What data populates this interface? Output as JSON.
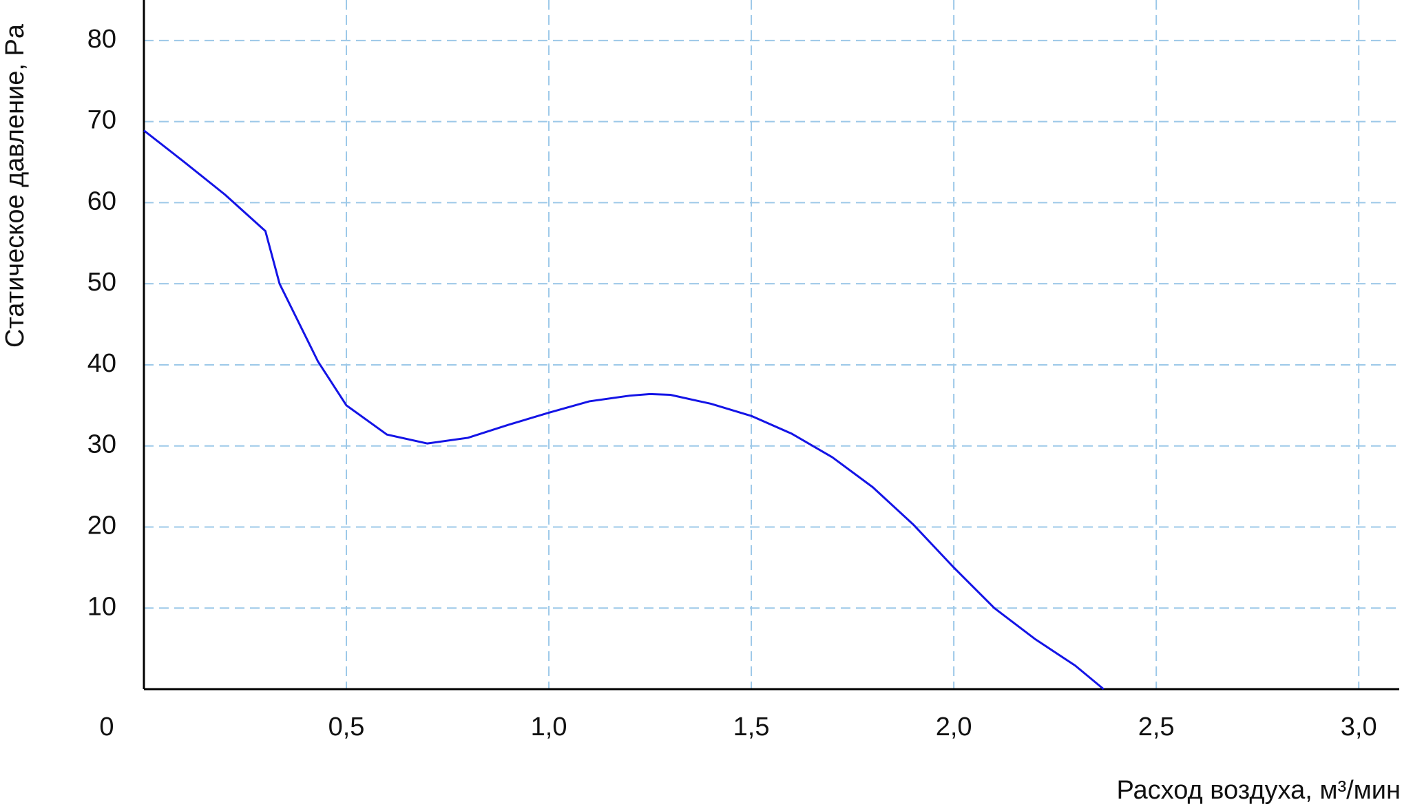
{
  "chart_data": {
    "type": "line",
    "xlabel": "Расход воздуха, м³/мин",
    "ylabel": "Статическое давление, Pa",
    "x": [
      0,
      0.1,
      0.2,
      0.3,
      0.335,
      0.43,
      0.5,
      0.6,
      0.7,
      0.8,
      0.9,
      1.0,
      1.1,
      1.2,
      1.25,
      1.3,
      1.4,
      1.5,
      1.6,
      1.7,
      1.8,
      1.9,
      2.0,
      2.1,
      2.2,
      2.3,
      2.37
    ],
    "series": [
      {
        "color": "#1414e6",
        "values": [
          68.9,
          65,
          61,
          56.5,
          50,
          40.4,
          35,
          31.4,
          30.3,
          31,
          32.6,
          34.1,
          35.5,
          36.2,
          36.4,
          36.3,
          35.2,
          33.7,
          31.5,
          28.6,
          24.9,
          20.3,
          15,
          10,
          6.2,
          2.9,
          0
        ]
      }
    ],
    "xlim": [
      0,
      3.1
    ],
    "ylim": [
      0,
      85
    ],
    "xticks": [
      {
        "value": 0,
        "label": "0"
      },
      {
        "value": 0.5,
        "label": "0,5"
      },
      {
        "value": 1.0,
        "label": "1,0"
      },
      {
        "value": 1.5,
        "label": "1,5"
      },
      {
        "value": 2.0,
        "label": "2,0"
      },
      {
        "value": 2.5,
        "label": "2,5"
      },
      {
        "value": 3.0,
        "label": "3,0"
      }
    ],
    "yticks": [
      10,
      20,
      30,
      40,
      50,
      60,
      70,
      80
    ],
    "grid": true
  }
}
